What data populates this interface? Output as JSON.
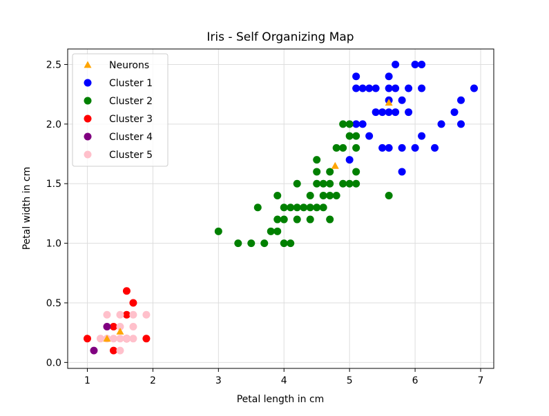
{
  "chart_data": {
    "type": "scatter",
    "title": "Iris - Self Organizing Map",
    "xlabel": "Petal length in cm",
    "ylabel": "Petal width in cm",
    "xlim": [
      0.7,
      7.2
    ],
    "ylim": [
      -0.05,
      2.63
    ],
    "xticks": [
      1,
      2,
      3,
      4,
      5,
      6,
      7
    ],
    "yticks": [
      0.0,
      0.5,
      1.0,
      1.5,
      2.0,
      2.5
    ],
    "ytick_labels": [
      "0.0",
      "0.5",
      "1.0",
      "1.5",
      "2.0",
      "2.5"
    ],
    "grid": true,
    "legend_position": "top-left",
    "series": [
      {
        "name": "Neurons",
        "marker": "triangle",
        "color": "#ffa500",
        "points": [
          [
            1.3,
            0.2
          ],
          [
            1.5,
            0.26
          ],
          [
            4.78,
            1.65
          ],
          [
            5.6,
            2.18
          ]
        ]
      },
      {
        "name": "Cluster 1",
        "marker": "circle",
        "color": "#0000ff",
        "points": [
          [
            5.1,
            2.4
          ],
          [
            5.6,
            2.4
          ],
          [
            5.7,
            2.5
          ],
          [
            6.0,
            2.5
          ],
          [
            6.1,
            2.5
          ],
          [
            5.1,
            2.3
          ],
          [
            5.2,
            2.3
          ],
          [
            5.3,
            2.3
          ],
          [
            5.4,
            2.3
          ],
          [
            5.6,
            2.3
          ],
          [
            5.7,
            2.3
          ],
          [
            5.9,
            2.3
          ],
          [
            6.1,
            2.3
          ],
          [
            6.9,
            2.3
          ],
          [
            5.6,
            2.2
          ],
          [
            5.8,
            2.2
          ],
          [
            6.7,
            2.2
          ],
          [
            5.4,
            2.1
          ],
          [
            5.5,
            2.1
          ],
          [
            5.6,
            2.1
          ],
          [
            5.7,
            2.1
          ],
          [
            5.9,
            2.1
          ],
          [
            6.6,
            2.1
          ],
          [
            5.1,
            2.0
          ],
          [
            5.2,
            2.0
          ],
          [
            6.4,
            2.0
          ],
          [
            6.7,
            2.0
          ],
          [
            5.3,
            1.9
          ],
          [
            6.1,
            1.9
          ],
          [
            5.5,
            1.8
          ],
          [
            5.6,
            1.8
          ],
          [
            5.8,
            1.8
          ],
          [
            6.0,
            1.8
          ],
          [
            6.3,
            1.8
          ],
          [
            5.0,
            1.7
          ],
          [
            5.8,
            1.6
          ]
        ]
      },
      {
        "name": "Cluster 2",
        "marker": "circle",
        "color": "#008000",
        "points": [
          [
            4.9,
            2.0
          ],
          [
            5.0,
            2.0
          ],
          [
            5.0,
            1.9
          ],
          [
            5.1,
            1.9
          ],
          [
            4.8,
            1.8
          ],
          [
            4.9,
            1.8
          ],
          [
            5.1,
            1.8
          ],
          [
            4.5,
            1.7
          ],
          [
            4.5,
            1.6
          ],
          [
            4.7,
            1.6
          ],
          [
            5.1,
            1.6
          ],
          [
            4.2,
            1.5
          ],
          [
            4.5,
            1.5
          ],
          [
            4.6,
            1.5
          ],
          [
            4.7,
            1.5
          ],
          [
            4.9,
            1.5
          ],
          [
            5.0,
            1.5
          ],
          [
            5.1,
            1.5
          ],
          [
            4.4,
            1.4
          ],
          [
            4.6,
            1.4
          ],
          [
            4.7,
            1.4
          ],
          [
            4.8,
            1.4
          ],
          [
            5.6,
            1.4
          ],
          [
            3.6,
            1.3
          ],
          [
            4.0,
            1.3
          ],
          [
            4.1,
            1.3
          ],
          [
            4.2,
            1.3
          ],
          [
            4.3,
            1.3
          ],
          [
            4.4,
            1.3
          ],
          [
            4.5,
            1.3
          ],
          [
            4.6,
            1.3
          ],
          [
            3.9,
            1.4
          ],
          [
            3.9,
            1.2
          ],
          [
            4.0,
            1.2
          ],
          [
            4.2,
            1.2
          ],
          [
            4.4,
            1.2
          ],
          [
            4.7,
            1.2
          ],
          [
            3.0,
            1.1
          ],
          [
            3.8,
            1.1
          ],
          [
            3.9,
            1.1
          ],
          [
            3.3,
            1.0
          ],
          [
            3.5,
            1.0
          ],
          [
            3.7,
            1.0
          ],
          [
            4.0,
            1.0
          ],
          [
            4.1,
            1.0
          ]
        ]
      },
      {
        "name": "Cluster 3",
        "marker": "circle",
        "color": "#ff0000",
        "points": [
          [
            1.6,
            0.6
          ],
          [
            1.7,
            0.5
          ],
          [
            1.6,
            0.4
          ],
          [
            1.4,
            0.3
          ],
          [
            1.0,
            0.2
          ],
          [
            1.9,
            0.2
          ],
          [
            1.6,
            0.2
          ],
          [
            1.4,
            0.1
          ]
        ]
      },
      {
        "name": "Cluster 4",
        "marker": "circle",
        "color": "#800080",
        "points": [
          [
            1.3,
            0.3
          ],
          [
            1.1,
            0.1
          ]
        ]
      },
      {
        "name": "Cluster 5",
        "marker": "circle",
        "color": "#ffc0cb",
        "points": [
          [
            1.3,
            0.4
          ],
          [
            1.5,
            0.4
          ],
          [
            1.9,
            0.4
          ],
          [
            1.7,
            0.4
          ],
          [
            1.5,
            0.3
          ],
          [
            1.7,
            0.3
          ],
          [
            1.2,
            0.2
          ],
          [
            1.3,
            0.2
          ],
          [
            1.4,
            0.2
          ],
          [
            1.5,
            0.2
          ],
          [
            1.6,
            0.2
          ],
          [
            1.7,
            0.2
          ],
          [
            1.5,
            0.1
          ]
        ]
      }
    ]
  }
}
